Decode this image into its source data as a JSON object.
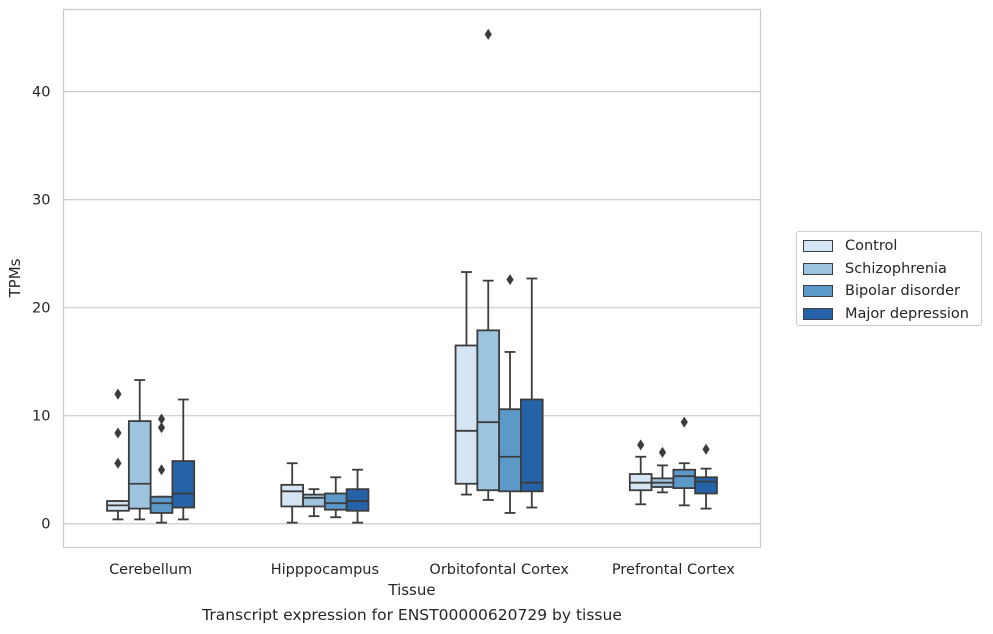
{
  "chart_data": {
    "type": "box",
    "xlabel": "Tissue",
    "ylabel": "TPMs",
    "caption": "Transcript expression for ENST00000620729 by tissue",
    "ylim": [
      -2.2,
      47.6
    ],
    "yticks": [
      0,
      10,
      20,
      30,
      40
    ],
    "grid": "horizontal",
    "legend_position": "right",
    "categories": [
      "Cerebellum",
      "Hipppocampus",
      "Orbitofontal Cortex",
      "Prefrontal Cortex"
    ],
    "series": [
      {
        "name": "Control",
        "color": "#d6e5f3",
        "boxes": [
          {
            "whislo": 0.4,
            "q1": 1.2,
            "med": 1.7,
            "q3": 2.1,
            "whishi": 2.1,
            "fliers": [
              5.6,
              8.4,
              12.0
            ]
          },
          {
            "whislo": 0.1,
            "q1": 1.6,
            "med": 3.0,
            "q3": 3.6,
            "whishi": 5.6,
            "fliers": []
          },
          {
            "whislo": 2.7,
            "q1": 3.7,
            "med": 8.6,
            "q3": 16.5,
            "whishi": 23.3,
            "fliers": []
          },
          {
            "whislo": 1.8,
            "q1": 3.1,
            "med": 3.8,
            "q3": 4.6,
            "whishi": 6.2,
            "fliers": [
              7.3
            ]
          }
        ]
      },
      {
        "name": "Schizophrenia",
        "color": "#9dc4df",
        "boxes": [
          {
            "whislo": 0.4,
            "q1": 1.4,
            "med": 3.7,
            "q3": 9.5,
            "whishi": 13.3,
            "fliers": []
          },
          {
            "whislo": 0.7,
            "q1": 1.6,
            "med": 2.4,
            "q3": 2.7,
            "whishi": 3.2,
            "fliers": []
          },
          {
            "whislo": 2.2,
            "q1": 3.1,
            "med": 9.4,
            "q3": 17.9,
            "whishi": 22.5,
            "fliers": [
              45.3
            ]
          },
          {
            "whislo": 2.9,
            "q1": 3.4,
            "med": 3.8,
            "q3": 4.2,
            "whishi": 5.4,
            "fliers": [
              6.6
            ]
          }
        ]
      },
      {
        "name": "Bipolar disorder",
        "color": "#5a99c8",
        "boxes": [
          {
            "whislo": 0.1,
            "q1": 1.0,
            "med": 1.9,
            "q3": 2.5,
            "whishi": 2.5,
            "fliers": [
              5.0,
              8.9,
              9.7
            ]
          },
          {
            "whislo": 0.6,
            "q1": 1.3,
            "med": 1.9,
            "q3": 2.8,
            "whishi": 4.3,
            "fliers": []
          },
          {
            "whislo": 1.0,
            "q1": 3.0,
            "med": 6.2,
            "q3": 10.6,
            "whishi": 15.9,
            "fliers": [
              22.6
            ]
          },
          {
            "whislo": 1.7,
            "q1": 3.3,
            "med": 4.4,
            "q3": 5.0,
            "whishi": 5.6,
            "fliers": [
              9.4
            ]
          }
        ]
      },
      {
        "name": "Major depression",
        "color": "#2563a8",
        "boxes": [
          {
            "whislo": 0.4,
            "q1": 1.5,
            "med": 2.8,
            "q3": 5.8,
            "whishi": 11.5,
            "fliers": []
          },
          {
            "whislo": 0.1,
            "q1": 1.2,
            "med": 2.1,
            "q3": 3.2,
            "whishi": 5.0,
            "fliers": []
          },
          {
            "whislo": 1.5,
            "q1": 3.0,
            "med": 3.8,
            "q3": 11.5,
            "whishi": 22.7,
            "fliers": []
          },
          {
            "whislo": 1.4,
            "q1": 2.8,
            "med": 3.9,
            "q3": 4.3,
            "whishi": 5.1,
            "fliers": [
              6.9
            ]
          }
        ]
      }
    ]
  }
}
